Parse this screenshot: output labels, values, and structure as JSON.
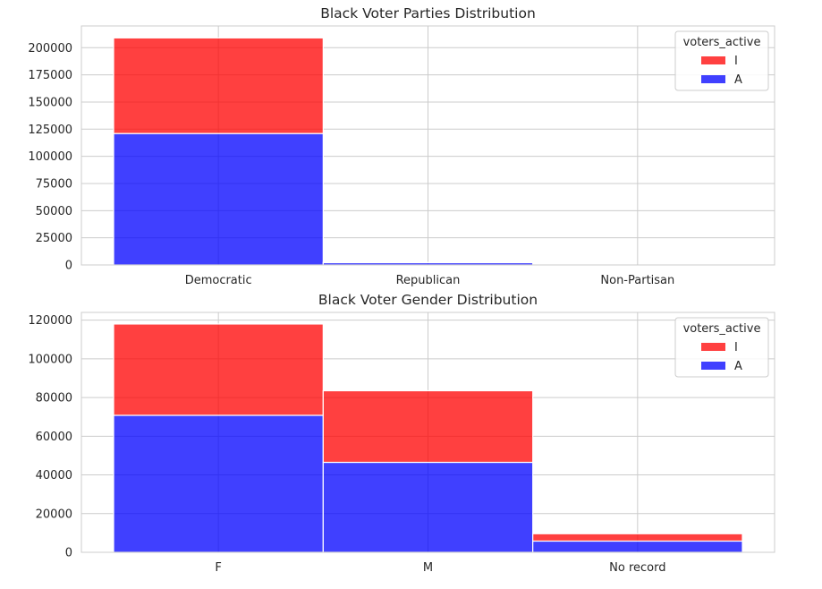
{
  "chart_data": [
    {
      "type": "bar",
      "stacked": true,
      "title": "Black Voter Parties Distribution",
      "categories": [
        "Democratic",
        "Republican",
        "Non-Partisan"
      ],
      "series": [
        {
          "name": "A",
          "values": [
            121000,
            2100,
            0
          ],
          "color": "#0000ff"
        },
        {
          "name": "I",
          "values": [
            88000,
            300,
            0
          ],
          "color": "#ff0000"
        }
      ],
      "yticks": [
        "0",
        "25000",
        "50000",
        "75000",
        "100000",
        "125000",
        "150000",
        "175000",
        "200000"
      ],
      "ylim": [
        0,
        220000
      ],
      "legend": {
        "title": "voters_active",
        "placement": "top-right",
        "entries": [
          "I",
          "A"
        ]
      },
      "grid": true
    },
    {
      "type": "bar",
      "stacked": true,
      "title": "Black Voter Gender Distribution",
      "categories": [
        "F",
        "M",
        "No record"
      ],
      "series": [
        {
          "name": "A",
          "values": [
            70800,
            46500,
            5800
          ],
          "color": "#0000ff"
        },
        {
          "name": "I",
          "values": [
            47200,
            37000,
            3800
          ],
          "color": "#ff0000"
        }
      ],
      "yticks": [
        "0",
        "20000",
        "40000",
        "60000",
        "80000",
        "100000",
        "120000"
      ],
      "ylim": [
        0,
        124000
      ],
      "legend": {
        "title": "voters_active",
        "placement": "top-right",
        "entries": [
          "I",
          "A"
        ]
      },
      "grid": true
    }
  ]
}
